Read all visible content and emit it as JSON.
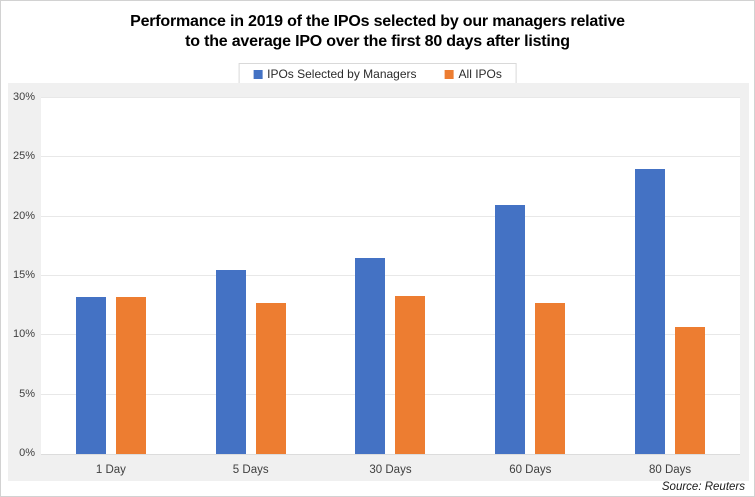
{
  "title_lines": [
    "Performance in 2019 of the IPOs selected by our managers relative",
    "to the average IPO over the first 80 days after listing"
  ],
  "source": "Source: Reuters",
  "colors": {
    "managers_blue": "#4472C4",
    "all_ipos_orange": "#ED7D31",
    "chart_background": "#f0f0f0",
    "plot_background": "#ffffff",
    "gridline": "#e8e8e8"
  },
  "chart_data": {
    "type": "bar",
    "title": "Performance in 2019 of the IPOs selected by our managers relative to the average IPO over the first 80 days after listing",
    "categories": [
      "1 Day",
      "5 Days",
      "30 Days",
      "60 Days",
      "80 Days"
    ],
    "series": [
      {
        "name": "IPOs Selected by Managers",
        "color": "#4472C4",
        "values": [
          13.2,
          15.5,
          16.5,
          21.0,
          24.0
        ]
      },
      {
        "name": "All IPOs",
        "color": "#ED7D31",
        "values": [
          13.2,
          12.7,
          13.3,
          12.7,
          10.7
        ]
      }
    ],
    "xlabel": "",
    "ylabel": "",
    "ylim": [
      0,
      30
    ],
    "ytick_step": 5,
    "ytick_suffix": "%",
    "grid": true,
    "legend_position": "top"
  }
}
